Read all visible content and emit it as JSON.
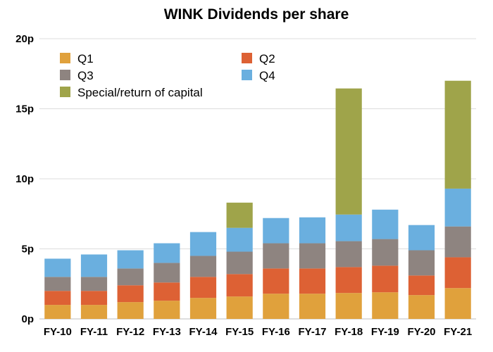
{
  "chart_data": {
    "type": "bar",
    "stacked": true,
    "title": "WINK Dividends per share",
    "xlabel": "",
    "ylabel": "",
    "categories": [
      "FY-10",
      "FY-11",
      "FY-12",
      "FY-13",
      "FY-14",
      "FY-15",
      "FY-16",
      "FY-17",
      "FY-18",
      "FY-19",
      "FY-20",
      "FY-21"
    ],
    "ylim": [
      0,
      20
    ],
    "yticks": [
      0,
      5,
      10,
      15,
      20
    ],
    "ytick_labels": [
      "0p",
      "5p",
      "10p",
      "15p",
      "20p"
    ],
    "grid": true,
    "legend_placement": "top-left",
    "series": [
      {
        "name": "Q1",
        "color": "#e0a13c",
        "values": [
          1.0,
          1.0,
          1.2,
          1.3,
          1.5,
          1.6,
          1.8,
          1.8,
          1.85,
          1.9,
          1.7,
          2.2
        ]
      },
      {
        "name": "Q2",
        "color": "#dd6134",
        "values": [
          1.0,
          1.0,
          1.2,
          1.3,
          1.5,
          1.6,
          1.8,
          1.8,
          1.85,
          1.9,
          1.4,
          2.2
        ]
      },
      {
        "name": "Q3",
        "color": "#8e8480",
        "values": [
          1.0,
          1.0,
          1.2,
          1.4,
          1.5,
          1.6,
          1.8,
          1.8,
          1.85,
          1.9,
          1.8,
          2.2
        ]
      },
      {
        "name": "Q4",
        "color": "#6aafdf",
        "values": [
          1.3,
          1.6,
          1.3,
          1.4,
          1.7,
          1.7,
          1.8,
          1.85,
          1.9,
          2.1,
          1.8,
          2.7
        ]
      },
      {
        "name": "Special/return of capital",
        "color": "#9fa44a",
        "values": [
          0,
          0,
          0,
          0,
          0,
          1.8,
          0,
          0,
          9.0,
          0,
          0,
          7.7
        ]
      }
    ]
  }
}
